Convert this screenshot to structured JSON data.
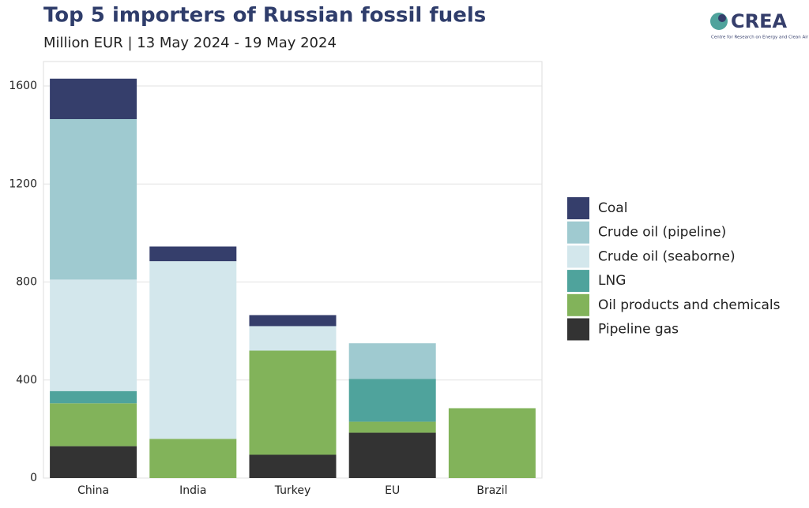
{
  "chart_data": {
    "type": "stacked_bar",
    "title": "Top 5 importers of Russian fossil fuels",
    "subtitle": "Million EUR | 13 May 2024 - 19 May 2024",
    "logo": {
      "name": "CREA",
      "tagline": "Centre for Research on Energy and Clean Air"
    },
    "categories": [
      "China",
      "India",
      "Turkey",
      "EU",
      "Brazil"
    ],
    "series": [
      {
        "name": "Coal",
        "color": "#353e6b",
        "values": [
          165,
          60,
          45,
          0,
          0
        ]
      },
      {
        "name": "Crude oil (pipeline)",
        "color": "#9fcad0",
        "values": [
          655,
          0,
          0,
          145,
          0
        ]
      },
      {
        "name": "Crude oil (seaborne)",
        "color": "#d3e7ec",
        "values": [
          455,
          725,
          100,
          0,
          0
        ]
      },
      {
        "name": "LNG",
        "color": "#4fa39c",
        "values": [
          50,
          0,
          0,
          175,
          0
        ]
      },
      {
        "name": "Oil products and chemicals",
        "color": "#82b35a",
        "values": [
          175,
          160,
          425,
          45,
          285
        ]
      },
      {
        "name": "Pipeline gas",
        "color": "#333333",
        "values": [
          130,
          0,
          95,
          185,
          0
        ]
      }
    ],
    "ylim": [
      0,
      1700
    ],
    "yticks": [
      0,
      400,
      800,
      1200,
      1600
    ],
    "grid": true,
    "legend": "right"
  }
}
